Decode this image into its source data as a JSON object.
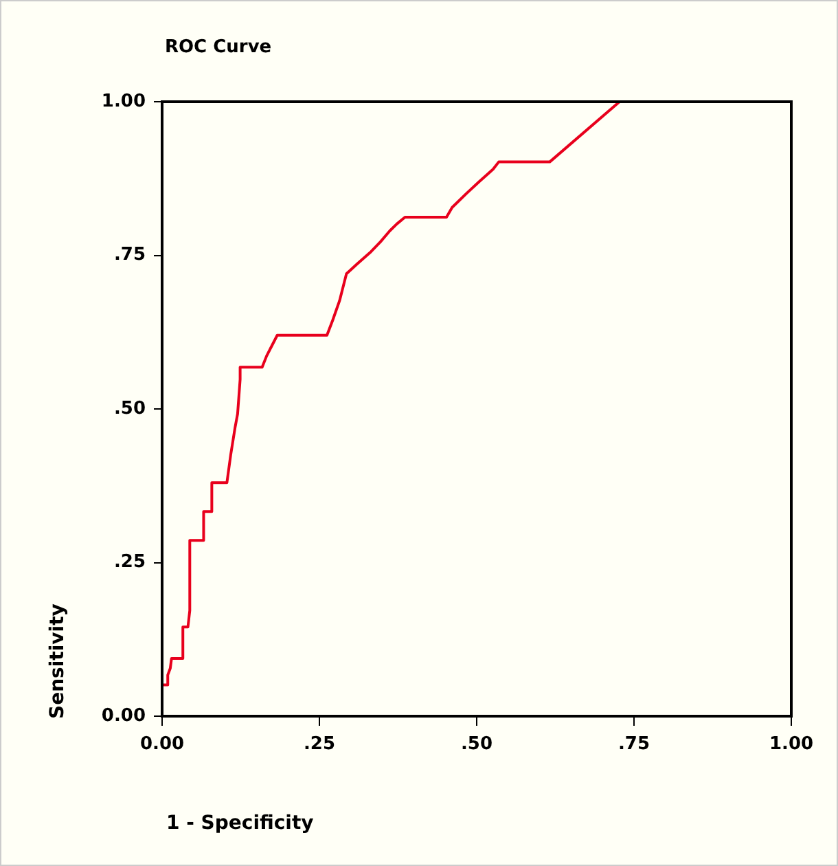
{
  "chart_data": {
    "type": "line",
    "title": "ROC Curve",
    "xlabel": "1 - Specificity",
    "ylabel": "Sensitivity",
    "xlim": [
      0,
      1
    ],
    "ylim": [
      0,
      1
    ],
    "xticks": [
      {
        "value": 0,
        "label": "0.00"
      },
      {
        "value": 0.25,
        "label": ".25"
      },
      {
        "value": 0.5,
        "label": ".50"
      },
      {
        "value": 0.75,
        "label": ".75"
      },
      {
        "value": 1,
        "label": "1.00"
      }
    ],
    "yticks": [
      {
        "value": 0,
        "label": "0.00"
      },
      {
        "value": 0.25,
        "label": ".25"
      },
      {
        "value": 0.5,
        "label": ".50"
      },
      {
        "value": 0.75,
        "label": ".75"
      },
      {
        "value": 1,
        "label": "1.00"
      }
    ],
    "grid": false,
    "legend": false,
    "marker": "none",
    "line_style": "solid",
    "series": [
      {
        "color": "#e8001c",
        "x": [
          0,
          0.009,
          0.009,
          0.013,
          0.015,
          0.033,
          0.033,
          0.041,
          0.044,
          0.044,
          0.066,
          0.066,
          0.079,
          0.079,
          0.103,
          0.109,
          0.116,
          0.12,
          0.124,
          0.124,
          0.159,
          0.166,
          0.175,
          0.183,
          0.262,
          0.271,
          0.282,
          0.293,
          0.31,
          0.332,
          0.347,
          0.362,
          0.373,
          0.386,
          0.452,
          0.461,
          0.483,
          0.504,
          0.526,
          0.535,
          0.616,
          0.727
        ],
        "values": [
          0.051,
          0.051,
          0.067,
          0.078,
          0.094,
          0.094,
          0.145,
          0.145,
          0.172,
          0.286,
          0.286,
          0.333,
          0.333,
          0.38,
          0.38,
          0.425,
          0.47,
          0.492,
          0.548,
          0.568,
          0.568,
          0.586,
          0.604,
          0.62,
          0.62,
          0.644,
          0.676,
          0.72,
          0.736,
          0.756,
          0.772,
          0.79,
          0.801,
          0.812,
          0.812,
          0.828,
          0.85,
          0.87,
          0.89,
          0.902,
          0.902,
          1.0
        ]
      }
    ]
  }
}
